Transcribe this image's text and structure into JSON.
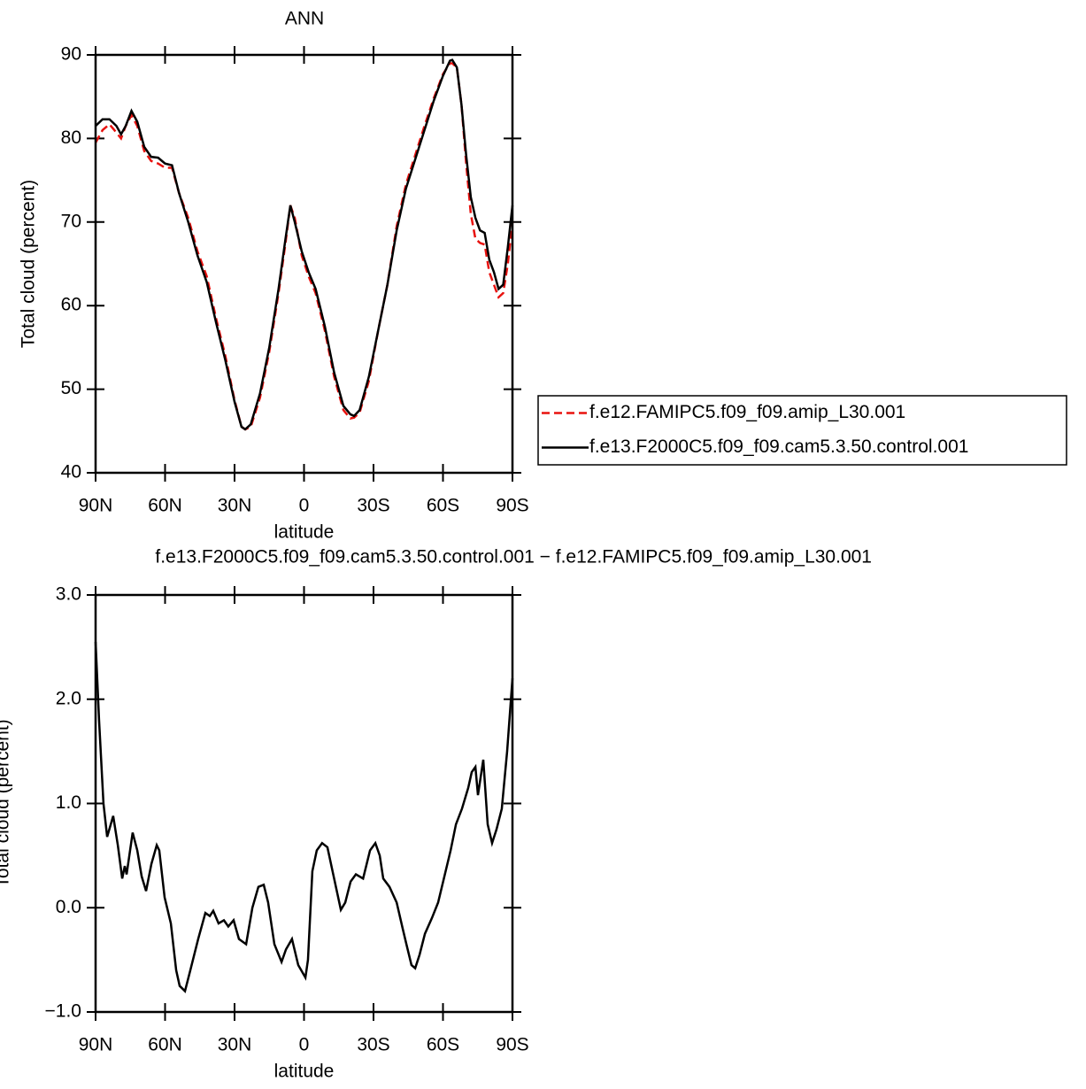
{
  "chart_data": [
    {
      "type": "line",
      "title": "ANN",
      "x_label": "latitude",
      "y_label": "Total cloud (percent)",
      "xlim": [
        90,
        -90
      ],
      "xticks": [
        {
          "value": 90,
          "label": "90N"
        },
        {
          "value": 60,
          "label": "60N"
        },
        {
          "value": 30,
          "label": "30N"
        },
        0,
        {
          "value": -30,
          "label": "30S"
        },
        {
          "value": -60,
          "label": "60S"
        },
        {
          "value": -90,
          "label": "90S"
        }
      ],
      "ylim": [
        40,
        90
      ],
      "yticks": [
        40,
        50,
        60,
        70,
        80,
        90
      ],
      "legend": "right",
      "x": [
        90,
        87,
        84,
        81,
        79,
        77,
        74.5,
        72,
        69,
        66,
        63,
        60,
        57,
        54,
        50,
        46,
        42,
        38,
        34,
        30,
        27,
        25.4,
        23,
        19,
        15,
        11,
        8,
        5.9,
        4,
        1,
        -2,
        -5,
        -9,
        -13,
        -17,
        -20,
        -21.6,
        -24,
        -28,
        -32,
        -36,
        -40,
        -44,
        -48,
        -52,
        -56,
        -60,
        -63,
        -64,
        -66,
        -68,
        -70,
        -72,
        -74,
        -76,
        -78,
        -80,
        -82,
        -84,
        -86,
        -88,
        -90
      ],
      "series": [
        {
          "name": "f.e12.FAMIPC5.f09_f09.amip_L30.001",
          "color": "#e8120f",
          "line_style": "dashed",
          "values": [
            79.5,
            81,
            81.7,
            80.7,
            80,
            81.5,
            82.8,
            81.5,
            78.5,
            77.3,
            77,
            76.5,
            76.5,
            73.5,
            70.5,
            66.5,
            63.5,
            58.5,
            54,
            48.7,
            45.5,
            45.2,
            45.5,
            49,
            54.5,
            61.5,
            67.5,
            72,
            70.5,
            66,
            63.5,
            61.5,
            57,
            51.5,
            47.5,
            46.5,
            46.6,
            47.2,
            51,
            57,
            62.5,
            69.5,
            74.5,
            78,
            81.5,
            84.8,
            87.7,
            89,
            89,
            88.5,
            84,
            77,
            71,
            68,
            67.5,
            67.3,
            64,
            62.5,
            61,
            61.5,
            65,
            70
          ]
        },
        {
          "name": "f.e13.F2000C5.f09_f09.cam5.3.50.control.001",
          "color": "#000000",
          "line_style": "solid",
          "values": [
            81.5,
            82.3,
            82.3,
            81.5,
            80.5,
            81.5,
            83.3,
            82,
            79,
            77.8,
            77.7,
            77,
            76.8,
            73.5,
            70,
            66,
            62.8,
            58,
            53.5,
            48.5,
            45.5,
            45.2,
            45.8,
            49.5,
            55,
            62,
            68,
            72,
            70,
            66.5,
            64,
            62,
            57.5,
            52,
            48,
            47,
            46.8,
            47.5,
            51.5,
            57,
            62.5,
            69,
            74,
            77.5,
            81,
            84.5,
            87.5,
            89.3,
            89.4,
            88.5,
            84,
            78,
            73,
            70.5,
            69,
            68.7,
            65.5,
            64,
            62,
            62.5,
            67,
            72
          ]
        }
      ]
    },
    {
      "type": "line",
      "title": "f.e13.F2000C5.f09_f09.cam5.3.50.control.001 − f.e12.FAMIPC5.f09_f09.amip_L30.001",
      "x_label": "latitude",
      "y_label": "Total cloud (percent)",
      "xlim": [
        90,
        -90
      ],
      "xticks": [
        {
          "value": 90,
          "label": "90N"
        },
        {
          "value": 60,
          "label": "60N"
        },
        {
          "value": 30,
          "label": "30N"
        },
        0,
        {
          "value": -30,
          "label": "30S"
        },
        {
          "value": -60,
          "label": "60S"
        },
        {
          "value": -90,
          "label": "90S"
        }
      ],
      "ylim": [
        -1,
        3
      ],
      "yticks": [
        {
          "value": -1,
          "label": "−1.0"
        },
        {
          "value": 0,
          "label": "0.0"
        },
        {
          "value": 1,
          "label": "1.0"
        },
        {
          "value": 2,
          "label": "2.0"
        },
        {
          "value": 3,
          "label": "3.0"
        }
      ],
      "x": [
        90,
        88.5,
        86.6,
        85,
        82.4,
        80.4,
        78.5,
        77.4,
        76.6,
        74,
        72,
        70.1,
        68.2,
        65.9,
        63.6,
        62.5,
        60.2,
        57.5,
        55.2,
        53.7,
        51.4,
        49.1,
        45.7,
        42.6,
        40.7,
        39.2,
        36.9,
        34.6,
        32.7,
        30.4,
        28.1,
        25,
        22.3,
        19.7,
        17.4,
        15.5,
        12.8,
        9.7,
        7.8,
        5.2,
        2.5,
        -0.6,
        -1.7,
        -3.6,
        -5.5,
        -7.8,
        -10.1,
        -12.8,
        -15.9,
        -17.8,
        -20.1,
        -22.4,
        -25.5,
        -28.5,
        -30.8,
        -32.7,
        -34.2,
        -36.9,
        -40,
        -42.6,
        -44.2,
        -46.4,
        -48,
        -49.9,
        -52.2,
        -55.2,
        -57.9,
        -60.6,
        -63.3,
        -65.6,
        -68.2,
        -70.9,
        -72.4,
        -74,
        -75.1,
        -77.4,
        -79.3,
        -81.2,
        -83.1,
        -85.4,
        -87.7,
        -90
      ],
      "series": [
        {
          "color": "#000000",
          "line_style": "solid",
          "values": [
            2.55,
            1.8,
            1.0,
            0.68,
            0.88,
            0.6,
            0.28,
            0.4,
            0.32,
            0.72,
            0.55,
            0.3,
            0.16,
            0.42,
            0.6,
            0.55,
            0.1,
            -0.15,
            -0.6,
            -0.75,
            -0.8,
            -0.6,
            -0.3,
            -0.05,
            -0.08,
            -0.03,
            -0.15,
            -0.12,
            -0.18,
            -0.12,
            -0.3,
            -0.35,
            0.0,
            0.2,
            0.22,
            0.05,
            -0.35,
            -0.52,
            -0.4,
            -0.3,
            -0.55,
            -0.67,
            -0.5,
            0.35,
            0.55,
            0.62,
            0.58,
            0.3,
            -0.02,
            0.05,
            0.25,
            0.32,
            0.28,
            0.55,
            0.62,
            0.5,
            0.28,
            0.2,
            0.05,
            -0.2,
            -0.35,
            -0.55,
            -0.58,
            -0.45,
            -0.25,
            -0.1,
            0.05,
            0.3,
            0.55,
            0.8,
            0.95,
            1.15,
            1.3,
            1.35,
            1.08,
            1.42,
            0.8,
            0.62,
            0.75,
            0.95,
            1.5,
            2.2
          ]
        }
      ]
    }
  ]
}
